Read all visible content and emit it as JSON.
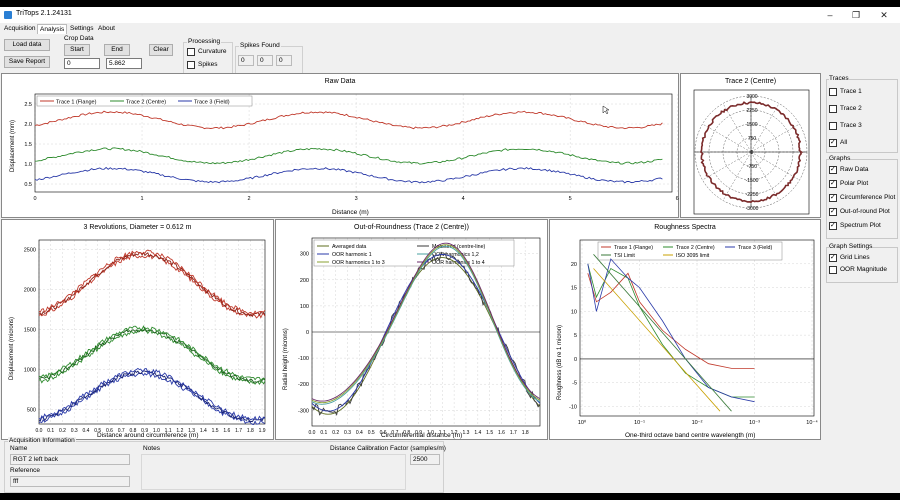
{
  "app": {
    "title": "TriTops 2.1.24131"
  },
  "tabs": [
    "Acquisition",
    "Analysis",
    "Settings",
    "About"
  ],
  "toolbar": {
    "load_label": "Load data",
    "save_label": "Save Report",
    "crop_title": "Crop Data",
    "start_label": "Start",
    "end_label": "End",
    "clear_label": "Clear",
    "start_value": "0",
    "end_value": "5.862",
    "processing_title": "Processing",
    "curvature_label": "Curvature",
    "spikes_label": "Spikes",
    "spikes_found_title": "Spikes Found",
    "spikes_counts": [
      "0",
      "0",
      "0"
    ]
  },
  "raw_panel": {
    "title": "Raw Data",
    "ylabel": "Displacement (mm)",
    "xlabel": "Distance (m)",
    "legend": [
      "Trace 1 (Flange)",
      "Trace 2 (Centre)",
      "Trace 3 (Field)"
    ],
    "yticks": [
      "0.5",
      "1.0",
      "1.5",
      "2.0",
      "2.5"
    ],
    "xticks": [
      "0",
      "1",
      "2",
      "3",
      "4",
      "5",
      "6"
    ]
  },
  "polar_panel": {
    "title": "Trace 2 (Centre)",
    "ticks": [
      "3000",
      "2250",
      "1500",
      "750",
      "0",
      "-750",
      "-1500",
      "-2250",
      "-3000"
    ]
  },
  "rev_panel": {
    "title": "3 Revolutions, Diameter = 0.612 m",
    "ylabel": "Displacement (microns)",
    "xlabel": "Distance around circumference (m)",
    "yticks": [
      "500",
      "1000",
      "1500",
      "2000",
      "2500"
    ],
    "xticks": [
      "0.0",
      "0.1",
      "0.2",
      "0.3",
      "0.4",
      "0.5",
      "0.6",
      "0.7",
      "0.8",
      "0.9",
      "1.0",
      "1.1",
      "1.2",
      "1.3",
      "1.4",
      "1.5",
      "1.6",
      "1.7",
      "1.8",
      "1.9"
    ]
  },
  "oor_panel": {
    "title": "Out-of-Roundness (Trace 2 (Centre))",
    "ylabel": "Radial height (microns)",
    "xlabel": "Circumferential distance (m)",
    "legend": [
      "Averaged data",
      "Measured (centre-line)",
      "OOR harmonic 1",
      "OOR harmonics 1,2",
      "OOR harmonics 1 to 3",
      "OOR harmonics 1 to 4"
    ],
    "yticks": [
      "-300",
      "-200",
      "-100",
      "0",
      "100",
      "200",
      "300"
    ],
    "xticks": [
      "0.0",
      "0.1",
      "0.2",
      "0.3",
      "0.4",
      "0.5",
      "0.6",
      "0.7",
      "0.8",
      "0.9",
      "1.0",
      "1.1",
      "1.2",
      "1.3",
      "1.4",
      "1.5",
      "1.6",
      "1.7",
      "1.8"
    ]
  },
  "rough_panel": {
    "title": "Roughness Spectra",
    "ylabel": "Roughness (dB re 1 micron)",
    "xlabel": "One-third octave band centre wavelength (m)",
    "legend": [
      "Trace 1 (Flange)",
      "Trace 2 (Centre)",
      "Trace 3 (Field)",
      "TSI Limit",
      "ISO 3095 limit"
    ],
    "yticks": [
      "-10",
      "-5",
      "0",
      "5",
      "10",
      "15",
      "20"
    ],
    "xticks": [
      "10⁰",
      "10⁻¹",
      "10⁻²",
      "10⁻³",
      "10⁻⁴"
    ]
  },
  "sidebar": {
    "traces_title": "Traces",
    "traces": [
      {
        "label": "Trace 1",
        "checked": false
      },
      {
        "label": "Trace 2",
        "checked": false
      },
      {
        "label": "Trace 3",
        "checked": false
      },
      {
        "label": "All",
        "checked": true
      }
    ],
    "graphs_title": "Graphs",
    "graphs": [
      {
        "label": "Raw Data",
        "checked": true
      },
      {
        "label": "Polar Plot",
        "checked": true
      },
      {
        "label": "Circumference Plot",
        "checked": true
      },
      {
        "label": "Out-of-round Plot",
        "checked": true
      },
      {
        "label": "Spectrum Plot",
        "checked": true
      }
    ],
    "settings_title": "Graph Settings",
    "settings": [
      {
        "label": "Grid Lines",
        "checked": true
      },
      {
        "label": "OOR Magnitude",
        "checked": false
      }
    ]
  },
  "acq_info": {
    "title": "Acquisition Information",
    "name_label": "Name",
    "name_value": "RGT 2 left back",
    "reference_label": "Reference",
    "reference_value": "fff",
    "notes_label": "Notes",
    "calib_label": "Distance Calibration Factor (samples/m)",
    "calib_value": "2500"
  },
  "colors": {
    "trace1": "#c0392b",
    "trace2": "#2e8b2e",
    "trace3": "#2a3aa8",
    "tsi": "#3a7a3a",
    "iso": "#c8a000"
  }
}
